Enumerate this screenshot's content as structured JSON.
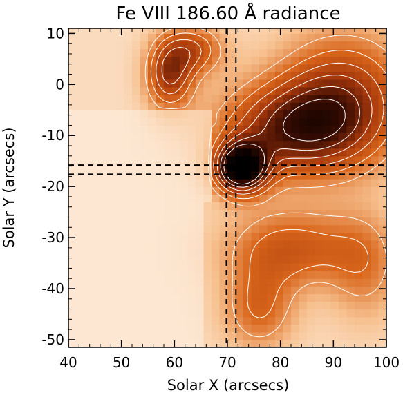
{
  "chart_data": {
    "type": "heatmap",
    "title": "Fe VIII 186.60 Å radiance",
    "xlabel": "Solar X (arcsecs)",
    "ylabel": "Solar Y (arcsecs)",
    "xlim": [
      40,
      100
    ],
    "ylim": [
      -51.5,
      11
    ],
    "x_ticks": [
      {
        "value": 40,
        "label": "40"
      },
      {
        "value": 50,
        "label": "50"
      },
      {
        "value": 60,
        "label": "60"
      },
      {
        "value": 70,
        "label": "70"
      },
      {
        "value": 80,
        "label": "80"
      },
      {
        "value": 90,
        "label": "90"
      },
      {
        "value": 100,
        "label": "100"
      }
    ],
    "y_ticks": [
      {
        "value": 10,
        "label": "10"
      },
      {
        "value": 0,
        "label": "0"
      },
      {
        "value": -10,
        "label": "-10"
      },
      {
        "value": -20,
        "label": "-20"
      },
      {
        "value": -30,
        "label": "-30"
      },
      {
        "value": -40,
        "label": "-40"
      },
      {
        "value": -50,
        "label": "-50"
      }
    ],
    "colormap": [
      "#fff6ec",
      "#f7c190",
      "#d9661b",
      "#a8390c",
      "#3a0c02",
      "#000000"
    ],
    "contour_color": "#ffffff",
    "crosshair": {
      "x_lines": [
        69.8,
        71.6
      ],
      "y_lines": [
        -15.8,
        -17.6
      ],
      "style": "dashed",
      "color": "#000000"
    }
  }
}
